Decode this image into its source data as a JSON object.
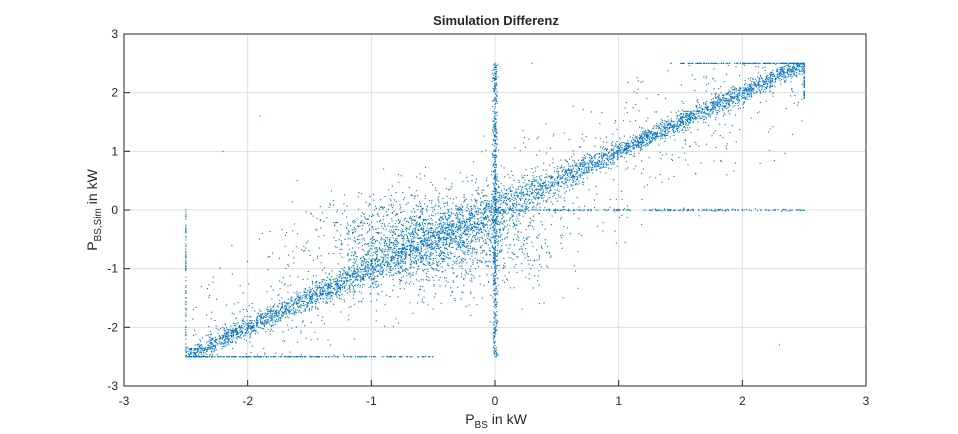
{
  "chart_data": {
    "type": "scatter",
    "title": "Simulation Differenz",
    "xlabel": {
      "main": "P",
      "subscript": "BS",
      "suffix": " in kW"
    },
    "ylabel": {
      "main": "P",
      "subscript": "BS,Sim",
      "suffix": " in kW"
    },
    "xlim": [
      -3,
      3
    ],
    "ylim": [
      -3,
      3
    ],
    "xticks": [
      "-3",
      "-2",
      "-1",
      "0",
      "1",
      "2",
      "3"
    ],
    "yticks": [
      "-3",
      "-2",
      "-1",
      "0",
      "1",
      "2",
      "3"
    ],
    "grid": true,
    "legend": "none",
    "marker_color": "#0072BD",
    "series": [
      {
        "description_note": "dense cloud of simulated vs measured battery power points clustered along y = x, clipped at ±2.5 kW, with a vertical band at x = 0 and a horizontal band at y = 0 for x in [0, 2.5]",
        "points_sample": [
          [
            -2.5,
            -2.5
          ],
          [
            -2.3,
            -2.35
          ],
          [
            -2.0,
            -2.05
          ],
          [
            -1.7,
            -1.65
          ],
          [
            -1.5,
            -1.4
          ],
          [
            -1.2,
            -1.1
          ],
          [
            -1.0,
            -0.95
          ],
          [
            -0.8,
            -0.75
          ],
          [
            -0.6,
            -0.55
          ],
          [
            -0.5,
            -0.45
          ],
          [
            -0.4,
            -0.35
          ],
          [
            -0.3,
            -0.3
          ],
          [
            -0.2,
            -0.15
          ],
          [
            -0.1,
            -0.05
          ],
          [
            0.0,
            0.0
          ],
          [
            0.1,
            0.1
          ],
          [
            0.2,
            0.2
          ],
          [
            0.3,
            0.3
          ],
          [
            0.5,
            0.5
          ],
          [
            0.7,
            0.7
          ],
          [
            1.0,
            1.0
          ],
          [
            1.3,
            1.3
          ],
          [
            1.5,
            1.5
          ],
          [
            1.8,
            1.8
          ],
          [
            2.0,
            2.0
          ],
          [
            2.2,
            2.2
          ],
          [
            2.4,
            2.4
          ],
          [
            2.5,
            2.5
          ],
          [
            0.0,
            2.5
          ],
          [
            0.0,
            -2.5
          ],
          [
            0.5,
            0.0
          ],
          [
            1.0,
            0.0
          ],
          [
            1.5,
            0.0
          ],
          [
            2.0,
            0.0
          ],
          [
            2.5,
            0.0
          ],
          [
            -2.5,
            0.0
          ],
          [
            -2.5,
            -1.0
          ],
          [
            -1.0,
            -2.5
          ],
          [
            2.5,
            2.0
          ],
          [
            1.6,
            2.5
          ],
          [
            -1.9,
            1.6
          ],
          [
            -2.2,
            1.0
          ],
          [
            -1.6,
            0.5
          ],
          [
            2.3,
            -2.3
          ],
          [
            -0.5,
            -1.0
          ],
          [
            0.6,
            1.2
          ],
          [
            -1.2,
            -0.3
          ],
          [
            -0.8,
            0.3
          ],
          [
            1.2,
            0.7
          ],
          [
            0.3,
            2.5
          ]
        ]
      }
    ]
  }
}
